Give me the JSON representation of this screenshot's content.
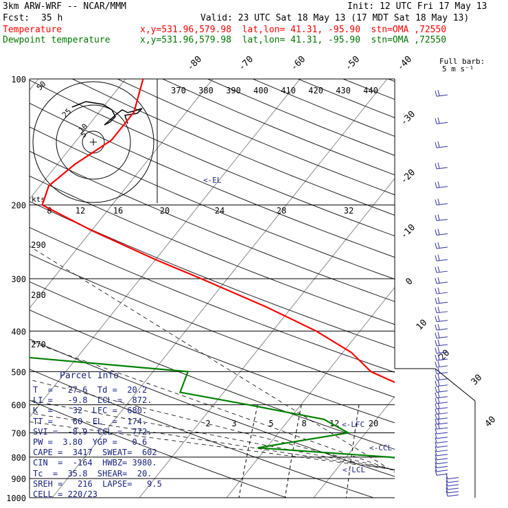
{
  "header": {
    "model": "3km ARW-WRF -- NCAR/MMM",
    "init": "Init: 12 UTC Fri 17 May 13",
    "fcst_label": "Fcst:",
    "fcst_value": "35 h",
    "valid": "Valid: 23 UTC Sat 18 May 13 (17 MDT Sat 18 May 13)",
    "temp_label": "Temperature",
    "dew_label": "Dewpoint temperature",
    "loc": "x,y=531.96,579.98  lat,lon= 41.31, -95.90  stn=OMA ,72550"
  },
  "wind_key": {
    "line1": "Full barb:",
    "line2": "5 m s⁻¹"
  },
  "parcel": {
    "title": "Parcel Info",
    "rows": [
      "T  =   27.6  Td =  20.2",
      "LI =   -9.8  LCL =  872.",
      "K  =    32  LFC =  680.",
      "TT =    60  EL  =  174.",
      "SVI =  -8.9  CCL =  772.",
      "PW =  3.80  YGP =   0.6",
      "CAPE =  3417  SWEAT=  602",
      "CIN  =  -164  HWBZ= 3980.",
      "Tc  =  35.8  SHEAR=  20.",
      "SREH =   216  LAPSE=   9.5",
      "CELL = 220/23"
    ]
  },
  "annotations": {
    "el": "<-EL",
    "lfc": "<-LFC",
    "ccl": "<-CCL",
    "lcl": "<-LCL",
    "kts": "kts"
  },
  "hodograph": {
    "ring_labels": [
      "5",
      "10",
      "25",
      "50"
    ]
  },
  "colors": {
    "temperature": "#ff0000",
    "dewpoint": "#008000",
    "text_navy": "#1a237e"
  },
  "chart_data": {
    "type": "line",
    "title": "",
    "pressure_levels_hPa": [
      100,
      200,
      300,
      400,
      500,
      600,
      700,
      800,
      900,
      1000
    ],
    "isotherm_labels_C": [
      -80,
      -70,
      -60,
      -50,
      -40,
      -30,
      -20,
      -10,
      0,
      10,
      20,
      30,
      40
    ],
    "theta_labels_K": [
      370,
      380,
      390,
      400,
      410,
      420,
      430,
      440
    ],
    "theta_e_labels_K": [
      270,
      280,
      290
    ],
    "mixing_ratio_labels_gkg_upper": [
      8,
      12,
      16,
      20,
      24,
      28,
      32
    ],
    "mixing_ratio_labels_gkg_lower": [
      2,
      3,
      5,
      8,
      12,
      20
    ],
    "grid": true,
    "series": [
      {
        "name": "Temperature",
        "points": [
          [
            100,
            -58
          ],
          [
            120,
            -56
          ],
          [
            140,
            -56
          ],
          [
            160,
            -58
          ],
          [
            180,
            -59
          ],
          [
            200,
            -58
          ],
          [
            230,
            -50
          ],
          [
            270,
            -40
          ],
          [
            300,
            -33
          ],
          [
            350,
            -23
          ],
          [
            400,
            -15
          ],
          [
            450,
            -9
          ],
          [
            500,
            -5
          ],
          [
            550,
            1
          ],
          [
            600,
            5
          ],
          [
            650,
            10
          ],
          [
            700,
            13
          ],
          [
            750,
            17
          ],
          [
            800,
            20
          ],
          [
            850,
            19
          ],
          [
            880,
            21
          ],
          [
            920,
            24
          ],
          [
            970,
            27.6
          ]
        ]
      },
      {
        "name": "Dewpoint temperature",
        "points": [
          [
            100,
            -72
          ],
          [
            130,
            -74
          ],
          [
            150,
            -77
          ],
          [
            170,
            -79
          ],
          [
            200,
            -83
          ],
          [
            230,
            -80
          ],
          [
            270,
            -75
          ],
          [
            300,
            -71
          ],
          [
            330,
            -60
          ],
          [
            360,
            -62
          ],
          [
            400,
            -63
          ],
          [
            460,
            -47
          ],
          [
            500,
            -26
          ],
          [
            560,
            -25
          ],
          [
            600,
            -16
          ],
          [
            650,
            -6
          ],
          [
            700,
            -2
          ],
          [
            760,
            -11
          ],
          [
            800,
            5
          ],
          [
            850,
            16
          ],
          [
            880,
            17
          ],
          [
            900,
            18
          ],
          [
            970,
            20.2
          ]
        ]
      }
    ]
  }
}
